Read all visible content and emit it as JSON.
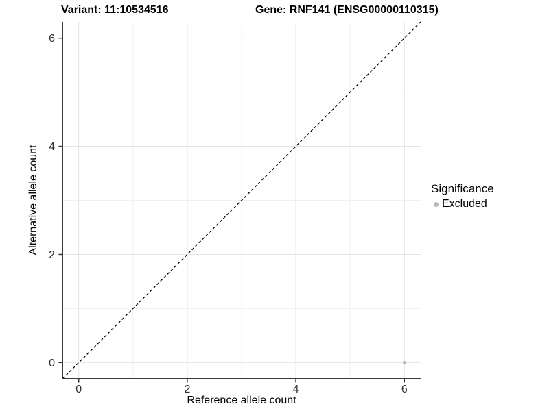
{
  "chart_data": {
    "type": "scatter",
    "titles": {
      "left": "Variant: 11:10534516",
      "right": "Gene: RNF141 (ENSG00000110315)"
    },
    "xlabel": "Reference allele count",
    "ylabel": "Alternative allele count",
    "xlim": [
      -0.3,
      6.3
    ],
    "ylim": [
      -0.3,
      6.3
    ],
    "x_ticks": [
      0,
      2,
      4,
      6
    ],
    "y_ticks": [
      0,
      2,
      4,
      6
    ],
    "x_minor_ticks": [
      1,
      3,
      5
    ],
    "y_minor_ticks": [
      1,
      3,
      5
    ],
    "grid": "major and minor, light grey on white panel",
    "reference_line": {
      "kind": "identity y=x",
      "style": "dashed",
      "color": "#000000"
    },
    "series": [
      {
        "name": "Excluded",
        "marker": "circle",
        "color": "#b8b8b8",
        "point_radius": 2.4,
        "points": [
          {
            "x": 6,
            "y": 0
          }
        ]
      }
    ],
    "legend": {
      "title": "Significance",
      "position": "right",
      "entries": [
        {
          "label": "Excluded",
          "color": "#b8b8b8"
        }
      ]
    },
    "colors": {
      "grid_major": "#e4e4e4",
      "grid_minor": "#f1f1f1",
      "axis_line": "#3a3a3a",
      "tick_mark": "#333333",
      "tick_label": "#303030",
      "background": "#ffffff"
    }
  }
}
